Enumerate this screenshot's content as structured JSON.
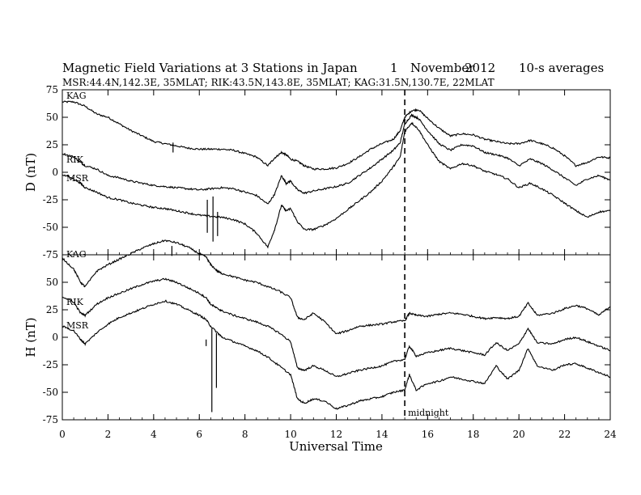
{
  "chart_data": {
    "type": "line",
    "title_parts": [
      "Magnetic Field Variations at 3 Stations in Japan",
      "1",
      "November",
      "2012",
      "10-s averages"
    ],
    "subtitle": "MSR:44.4N,142.3E, 35MLAT;  RIK:43.5N,143.8E, 35MLAT;  KAG:31.5N,130.7E, 22MLAT",
    "xlabel": "Universal Time",
    "xlim": [
      0,
      24
    ],
    "xticks": [
      "0",
      "2",
      "4",
      "6",
      "8",
      "10",
      "12",
      "14",
      "16",
      "18",
      "20",
      "22",
      "24"
    ],
    "marker": {
      "x": 15,
      "label": "midnight"
    },
    "panels": [
      {
        "ylabel": "D (nT)",
        "ylim": [
          -75,
          75
        ],
        "yticks": [
          "75",
          "50",
          "25",
          "0",
          "-25",
          "-50",
          "-75"
        ],
        "series": [
          {
            "name": "KAG",
            "x": [
              0,
              0.5,
              1,
              1.5,
              2,
              2.5,
              3,
              3.5,
              4,
              4.5,
              5,
              5.5,
              6,
              6.5,
              7,
              7.5,
              8,
              8.5,
              9,
              9.3,
              9.6,
              9.8,
              10,
              10.3,
              10.6,
              11,
              11.5,
              12,
              12.5,
              13,
              13.5,
              14,
              14.5,
              14.8,
              15,
              15.3,
              15.6,
              16,
              16.5,
              17,
              17.5,
              18,
              18.5,
              19,
              19.5,
              20,
              20.5,
              21,
              21.5,
              22,
              22.5,
              23,
              23.5,
              24
            ],
            "y": [
              64,
              64,
              60,
              53,
              50,
              44,
              38,
              33,
              28,
              26,
              24,
              22,
              21,
              21,
              21,
              20,
              17,
              14,
              6,
              13,
              18,
              16,
              12,
              10,
              6,
              3,
              3,
              4,
              8,
              14,
              21,
              26,
              30,
              38,
              50,
              56,
              57,
              49,
              40,
              33,
              35,
              34,
              30,
              28,
              26,
              26,
              29,
              26,
              22,
              15,
              6,
              9,
              14,
              13
            ]
          },
          {
            "name": "RIK",
            "x": [
              0,
              0.5,
              0.8,
              1,
              1.5,
              2,
              2.5,
              3,
              3.5,
              4,
              4.5,
              5,
              5.5,
              6,
              6.5,
              7,
              7.5,
              8,
              8.5,
              9,
              9.3,
              9.6,
              9.8,
              10,
              10.3,
              10.6,
              11,
              11.5,
              12,
              12.5,
              13,
              13.5,
              14,
              14.5,
              14.8,
              15,
              15.3,
              15.6,
              16,
              16.5,
              17,
              17.5,
              18,
              18.5,
              19,
              19.5,
              20,
              20.5,
              21,
              21.5,
              22,
              22.5,
              23,
              23.5,
              24
            ],
            "y": [
              17,
              14,
              9,
              6,
              3,
              -3,
              -5,
              -8,
              -10,
              -12,
              -13,
              -14,
              -15,
              -16,
              -15,
              -14,
              -15,
              -18,
              -21,
              -29,
              -20,
              -3,
              -10,
              -8,
              -16,
              -19,
              -17,
              -15,
              -13,
              -10,
              -3,
              4,
              12,
              20,
              27,
              44,
              52,
              49,
              38,
              26,
              20,
              25,
              24,
              18,
              16,
              13,
              6,
              12,
              8,
              2,
              -5,
              -12,
              -6,
              -3,
              -7
            ]
          },
          {
            "name": "MSR",
            "x": [
              0,
              0.5,
              0.8,
              1,
              1.5,
              2,
              2.5,
              3,
              3.5,
              4,
              4.5,
              5,
              5.5,
              6,
              6.5,
              7,
              7.5,
              8,
              8.5,
              9,
              9.3,
              9.6,
              9.8,
              10,
              10.3,
              10.6,
              11,
              11.5,
              12,
              12.5,
              13,
              13.5,
              14,
              14.5,
              14.8,
              15,
              15.3,
              15.6,
              16,
              16.5,
              17,
              17.5,
              18,
              18.5,
              19,
              19.5,
              20,
              20.5,
              21,
              21.5,
              22,
              22.5,
              23,
              23.5,
              24
            ],
            "y": [
              -2,
              -6,
              -10,
              -14,
              -18,
              -23,
              -25,
              -28,
              -30,
              -32,
              -33,
              -35,
              -37,
              -39,
              -40,
              -41,
              -43,
              -47,
              -55,
              -68,
              -52,
              -30,
              -35,
              -33,
              -45,
              -52,
              -52,
              -48,
              -42,
              -34,
              -26,
              -18,
              -8,
              5,
              14,
              37,
              45,
              39,
              25,
              10,
              3,
              8,
              6,
              1,
              -2,
              -6,
              -14,
              -10,
              -15,
              -21,
              -28,
              -35,
              -41,
              -36,
              -35
            ]
          }
        ]
      },
      {
        "ylabel": "H (nT)",
        "ylim": [
          -75,
          75
        ],
        "yticks": [
          "75",
          "50",
          "25",
          "0",
          "-25",
          "-50",
          "-75"
        ],
        "series": [
          {
            "name": "KAG",
            "x": [
              0,
              0.5,
              0.8,
              1,
              1.5,
              2,
              2.5,
              3,
              3.5,
              4,
              4.5,
              5,
              5.5,
              6,
              6.3,
              6.5,
              6.8,
              7,
              7.5,
              8,
              8.5,
              9,
              9.5,
              10,
              10.3,
              10.6,
              11,
              11.5,
              12,
              12.5,
              13,
              13.5,
              14,
              14.5,
              15,
              15.2,
              15.5,
              16,
              16.5,
              17,
              17.5,
              18,
              18.5,
              19,
              19.5,
              20,
              20.4,
              20.8,
              21.5,
              22,
              22.5,
              23,
              23.5,
              24
            ],
            "y": [
              72,
              62,
              50,
              46,
              60,
              66,
              71,
              76,
              81,
              85,
              88,
              86,
              82,
              76,
              73,
              66,
              60,
              58,
              55,
              52,
              50,
              46,
              42,
              36,
              18,
              16,
              22,
              14,
              3,
              6,
              10,
              11,
              12,
              14,
              15,
              22,
              20,
              19,
              21,
              22,
              21,
              19,
              17,
              18,
              17,
              19,
              31,
              20,
              22,
              26,
              29,
              26,
              20,
              28
            ]
          },
          {
            "name": "RIK",
            "x": [
              0,
              0.5,
              0.8,
              1,
              1.5,
              2,
              2.5,
              3,
              3.5,
              4,
              4.5,
              5,
              5.5,
              6,
              6.3,
              6.5,
              6.8,
              7,
              7.5,
              8,
              8.5,
              9,
              9.5,
              10,
              10.3,
              10.6,
              11,
              11.5,
              12,
              12.5,
              13,
              13.5,
              14,
              14.5,
              15,
              15.2,
              15.5,
              16,
              16.5,
              17,
              17.5,
              18,
              18.5,
              19,
              19.5,
              20,
              20.4,
              20.8,
              21.5,
              22,
              22.5,
              23,
              23.5,
              24
            ],
            "y": [
              37,
              32,
              22,
              20,
              30,
              36,
              40,
              44,
              48,
              51,
              53,
              50,
              45,
              40,
              36,
              30,
              26,
              24,
              20,
              17,
              14,
              10,
              4,
              -4,
              -28,
              -30,
              -26,
              -30,
              -36,
              -33,
              -30,
              -28,
              -26,
              -22,
              -20,
              -8,
              -17,
              -14,
              -12,
              -10,
              -12,
              -14,
              -16,
              -5,
              -12,
              -6,
              8,
              -5,
              -6,
              -2,
              0,
              -4,
              -8,
              -12
            ]
          },
          {
            "name": "MSR",
            "x": [
              0,
              0.5,
              0.8,
              1,
              1.5,
              2,
              2.5,
              3,
              3.5,
              4,
              4.5,
              5,
              5.5,
              6,
              6.3,
              6.5,
              6.8,
              7,
              7.5,
              8,
              8.5,
              9,
              9.5,
              10,
              10.3,
              10.6,
              11,
              11.5,
              12,
              12.5,
              13,
              13.5,
              14,
              14.5,
              15,
              15.2,
              15.5,
              16,
              16.5,
              17,
              17.5,
              18,
              18.5,
              19,
              19.5,
              20,
              20.4,
              20.8,
              21.5,
              22,
              22.5,
              23,
              23.5,
              24
            ],
            "y": [
              10,
              6,
              -2,
              -6,
              4,
              12,
              18,
              22,
              26,
              30,
              33,
              30,
              25,
              20,
              16,
              10,
              4,
              0,
              -4,
              -8,
              -12,
              -18,
              -26,
              -34,
              -56,
              -60,
              -56,
              -58,
              -65,
              -62,
              -58,
              -56,
              -54,
              -50,
              -48,
              -34,
              -48,
              -42,
              -40,
              -36,
              -38,
              -40,
              -42,
              -26,
              -38,
              -30,
              -10,
              -26,
              -30,
              -25,
              -24,
              -28,
              -32,
              -36
            ]
          }
        ]
      }
    ]
  }
}
